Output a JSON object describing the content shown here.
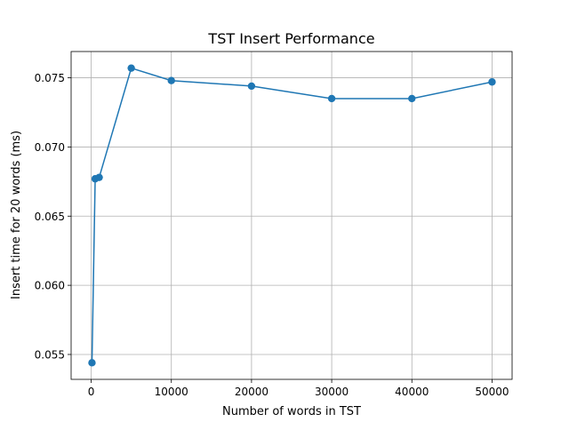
{
  "chart_data": {
    "type": "line",
    "title": "TST Insert Performance",
    "xlabel": "Number of words in TST",
    "ylabel": "Insert time for 20 words (ms)",
    "xlim": [
      -2500,
      52500
    ],
    "ylim": [
      0.0532,
      0.0769
    ],
    "xticks": [
      0,
      10000,
      20000,
      30000,
      40000,
      50000
    ],
    "xtick_labels": [
      "0",
      "10000",
      "20000",
      "30000",
      "40000",
      "50000"
    ],
    "yticks": [
      0.055,
      0.06,
      0.065,
      0.07,
      0.075
    ],
    "ytick_labels": [
      "0.055",
      "0.060",
      "0.065",
      "0.070",
      "0.075"
    ],
    "grid": true,
    "series": [
      {
        "color": "#1f77b4",
        "marker": "circle",
        "x": [
          100,
          500,
          1000,
          5000,
          10000,
          20000,
          30000,
          40000,
          50000
        ],
        "y": [
          0.0544,
          0.0677,
          0.0678,
          0.0757,
          0.0748,
          0.0744,
          0.0735,
          0.0735,
          0.0747
        ]
      }
    ]
  }
}
